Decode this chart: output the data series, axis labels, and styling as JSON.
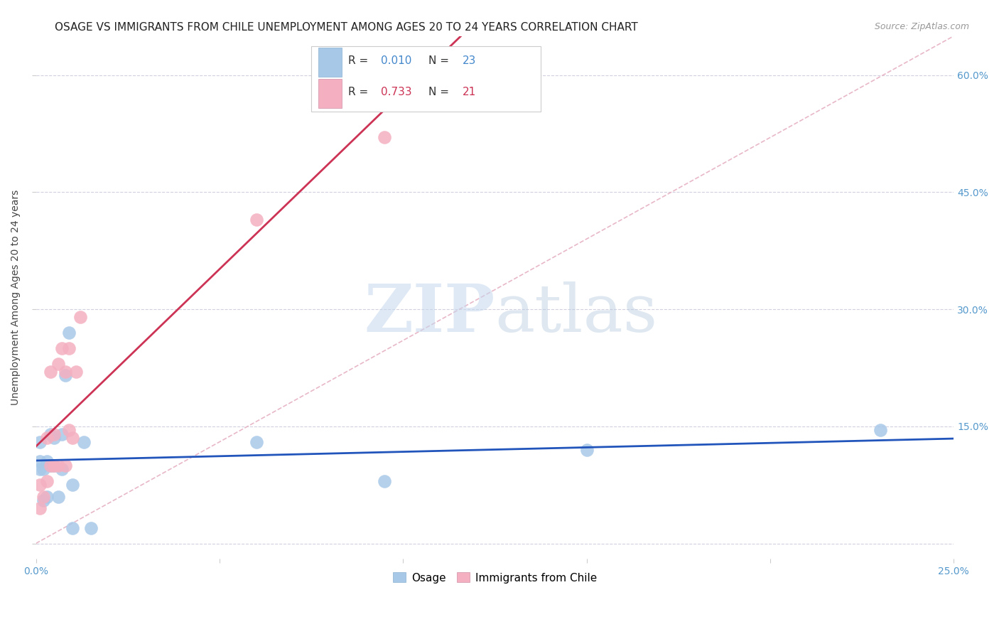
{
  "title": "OSAGE VS IMMIGRANTS FROM CHILE UNEMPLOYMENT AMONG AGES 20 TO 24 YEARS CORRELATION CHART",
  "source": "Source: ZipAtlas.com",
  "ylabel": "Unemployment Among Ages 20 to 24 years",
  "xlim": [
    0.0,
    0.25
  ],
  "ylim": [
    -0.02,
    0.65
  ],
  "yticks": [
    0.0,
    0.15,
    0.3,
    0.45,
    0.6
  ],
  "yticklabels_right": [
    "",
    "15.0%",
    "30.0%",
    "45.0%",
    "60.0%"
  ],
  "xtick_positions": [
    0.0,
    0.05,
    0.1,
    0.15,
    0.2,
    0.25
  ],
  "xticklabels": [
    "0.0%",
    "",
    "",
    "",
    "",
    "25.0%"
  ],
  "osage_color": "#a8c8e8",
  "chile_color": "#f4b0c0",
  "osage_line_color": "#2255bb",
  "chile_line_color": "#cc3355",
  "diagonal_color": "#e8b8c8",
  "osage_x": [
    0.001,
    0.001,
    0.001,
    0.002,
    0.002,
    0.003,
    0.003,
    0.004,
    0.004,
    0.005,
    0.005,
    0.006,
    0.007,
    0.007,
    0.008,
    0.009,
    0.01,
    0.01,
    0.013,
    0.015,
    0.06,
    0.095,
    0.15,
    0.23
  ],
  "osage_y": [
    0.095,
    0.105,
    0.13,
    0.055,
    0.095,
    0.06,
    0.105,
    0.1,
    0.14,
    0.1,
    0.135,
    0.06,
    0.095,
    0.14,
    0.215,
    0.27,
    0.02,
    0.075,
    0.13,
    0.02,
    0.13,
    0.08,
    0.12,
    0.145
  ],
  "chile_x": [
    0.001,
    0.001,
    0.002,
    0.003,
    0.003,
    0.004,
    0.004,
    0.005,
    0.005,
    0.006,
    0.006,
    0.007,
    0.008,
    0.008,
    0.009,
    0.009,
    0.01,
    0.011,
    0.012,
    0.06,
    0.095
  ],
  "chile_y": [
    0.045,
    0.075,
    0.06,
    0.08,
    0.135,
    0.1,
    0.22,
    0.1,
    0.14,
    0.1,
    0.23,
    0.25,
    0.1,
    0.22,
    0.145,
    0.25,
    0.135,
    0.22,
    0.29,
    0.415,
    0.52
  ],
  "watermark_zip": "ZIP",
  "watermark_atlas": "atlas",
  "background_color": "#ffffff",
  "grid_color": "#d0d0e0",
  "title_fontsize": 11,
  "axis_label_fontsize": 10,
  "tick_fontsize": 10,
  "legend_fontsize": 11,
  "source_fontsize": 9
}
